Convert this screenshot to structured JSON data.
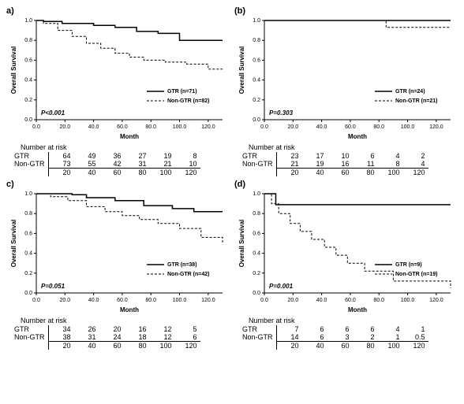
{
  "chart_common": {
    "type": "kaplan-meier",
    "ylabel": "Overall Survival",
    "xlabel": "Month",
    "ylim": [
      0,
      1.0
    ],
    "ytick_step": 0.2,
    "xlim": [
      0,
      130
    ],
    "xtick_step": 20,
    "label_fontsize": 8,
    "tick_fontsize": 7,
    "line_color_solid": "#000000",
    "line_color_dash": "#000000",
    "dash_pattern": "3 2",
    "background_color": "#ffffff",
    "risk_title": "Number at risk",
    "risk_time_labels": [
      "20",
      "40",
      "60",
      "80",
      "100",
      "120"
    ],
    "group_labels": [
      "GTR",
      "Non-GTR"
    ]
  },
  "panels": {
    "a": {
      "label": "a)",
      "pvalue": "P<0.001",
      "legend_gtr": "GTR (n=71)",
      "legend_nongtr": "Non-GTR (n=82)",
      "series_gtr": {
        "x": [
          0,
          5,
          18,
          40,
          55,
          70,
          85,
          100,
          120,
          130
        ],
        "y": [
          1.0,
          0.99,
          0.97,
          0.95,
          0.93,
          0.89,
          0.87,
          0.8,
          0.8,
          0.8
        ]
      },
      "series_nongtr": {
        "x": [
          0,
          5,
          15,
          25,
          35,
          45,
          55,
          65,
          75,
          90,
          105,
          120,
          130
        ],
        "y": [
          1.0,
          0.97,
          0.9,
          0.84,
          0.77,
          0.72,
          0.67,
          0.63,
          0.6,
          0.58,
          0.56,
          0.51,
          0.51
        ]
      },
      "risk_gtr": [
        "64",
        "49",
        "36",
        "27",
        "19",
        "8"
      ],
      "risk_nongtr": [
        "73",
        "55",
        "42",
        "31",
        "21",
        "10"
      ]
    },
    "b": {
      "label": "(b)",
      "pvalue": "P=0.303",
      "legend_gtr": "GTR (n=24)",
      "legend_nongtr": "Non-GTR (n=21)",
      "series_gtr": {
        "x": [
          0,
          130
        ],
        "y": [
          1.0,
          1.0
        ]
      },
      "series_nongtr": {
        "x": [
          0,
          85,
          85,
          130
        ],
        "y": [
          1.0,
          1.0,
          0.93,
          0.93
        ]
      },
      "risk_gtr": [
        "23",
        "17",
        "10",
        "6",
        "4",
        "2"
      ],
      "risk_nongtr": [
        "21",
        "19",
        "16",
        "11",
        "8",
        "4"
      ]
    },
    "c": {
      "label": "c)",
      "pvalue": "P=0.051",
      "legend_gtr": "GTR (n=38)",
      "legend_nongtr": "Non-GTR (n=42)",
      "series_gtr": {
        "x": [
          0,
          25,
          35,
          55,
          75,
          95,
          110,
          130
        ],
        "y": [
          1.0,
          0.99,
          0.96,
          0.93,
          0.88,
          0.85,
          0.82,
          0.82
        ]
      },
      "series_nongtr": {
        "x": [
          0,
          10,
          22,
          35,
          48,
          60,
          72,
          85,
          100,
          115,
          130
        ],
        "y": [
          1.0,
          0.97,
          0.93,
          0.87,
          0.82,
          0.78,
          0.74,
          0.7,
          0.65,
          0.56,
          0.49
        ]
      },
      "risk_gtr": [
        "34",
        "26",
        "20",
        "16",
        "12",
        "5"
      ],
      "risk_nongtr": [
        "38",
        "31",
        "24",
        "18",
        "12",
        "6"
      ]
    },
    "d": {
      "label": "(d)",
      "pvalue": "P=0.001",
      "legend_gtr": "GTR (n=9)",
      "legend_nongtr": "Non-GTR (n=19)",
      "series_gtr": {
        "x": [
          0,
          8,
          8,
          130
        ],
        "y": [
          1.0,
          1.0,
          0.89,
          0.89
        ]
      },
      "series_nongtr": {
        "x": [
          0,
          5,
          10,
          18,
          25,
          33,
          42,
          50,
          58,
          70,
          90,
          130
        ],
        "y": [
          1.0,
          0.9,
          0.8,
          0.7,
          0.62,
          0.54,
          0.46,
          0.38,
          0.3,
          0.22,
          0.12,
          0.05
        ]
      },
      "risk_gtr": [
        "7",
        "6",
        "6",
        "6",
        "4",
        "1"
      ],
      "risk_nongtr": [
        "14",
        "6",
        "3",
        "2",
        "1",
        "0.5"
      ]
    }
  }
}
